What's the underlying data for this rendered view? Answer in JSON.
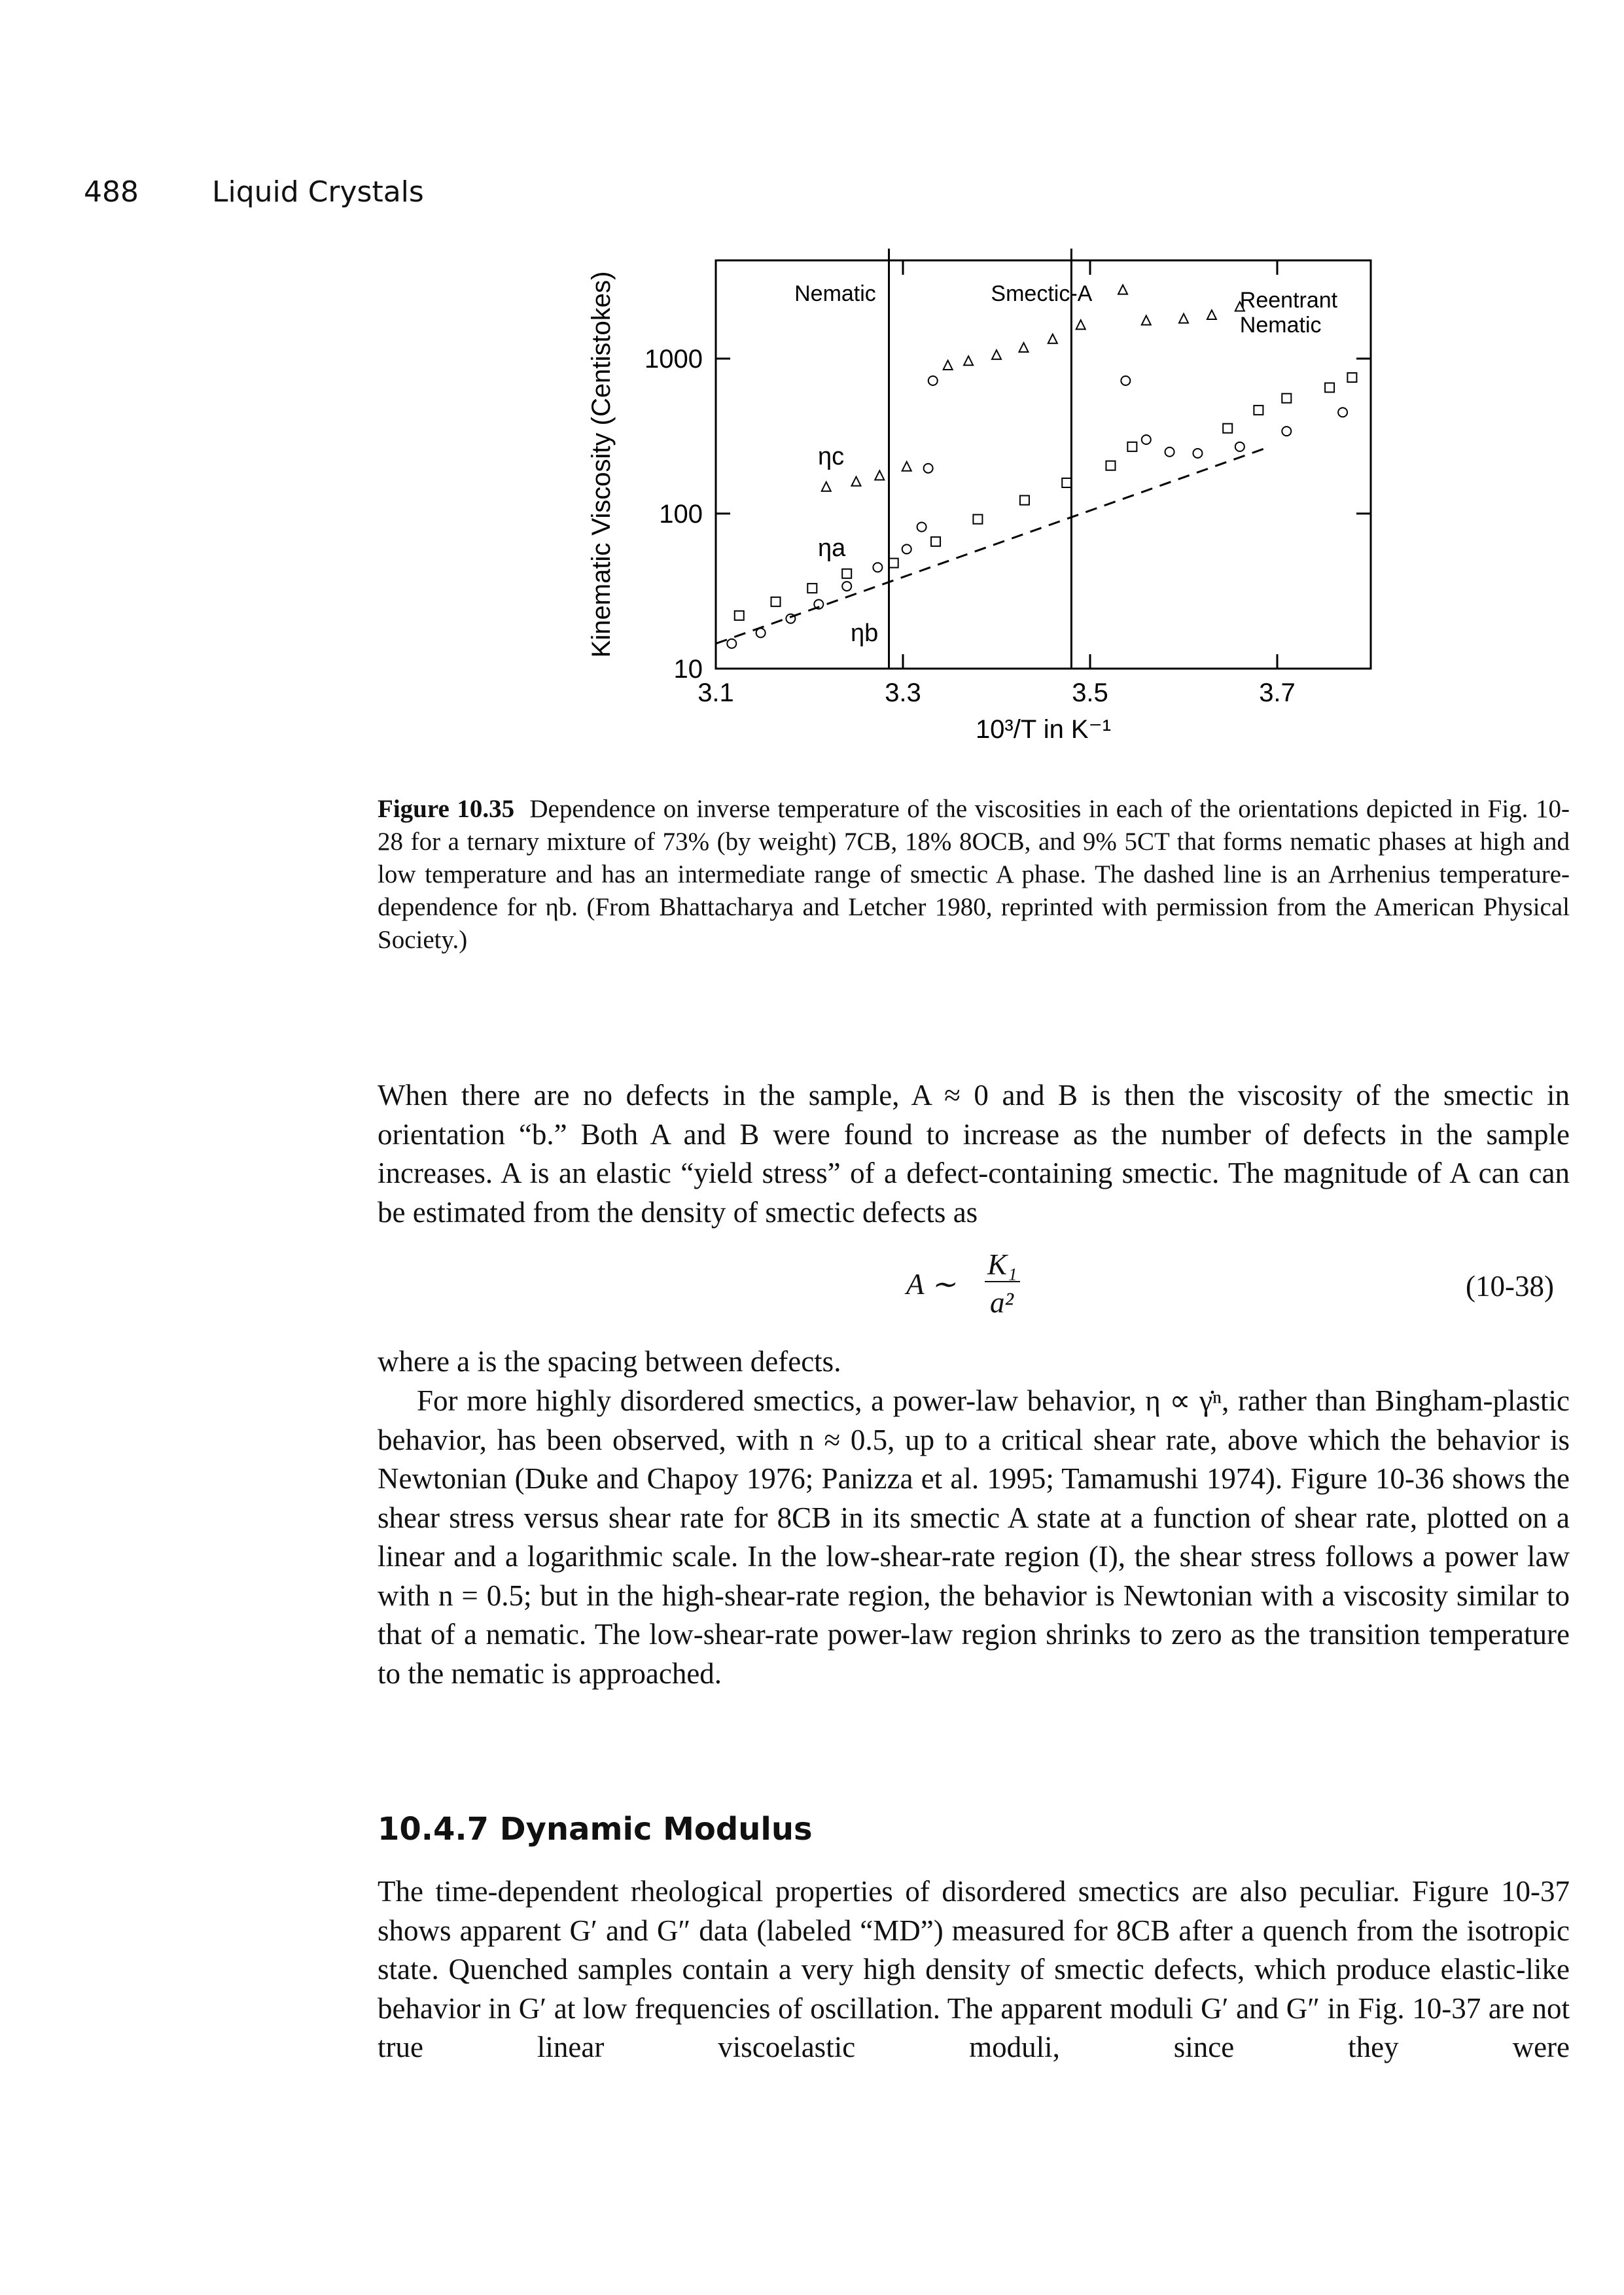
{
  "header": {
    "page_number": "488",
    "running_title": "Liquid Crystals"
  },
  "chart_data": {
    "type": "scatter",
    "ylabel": "Kinematic Viscosity (Centistokes)",
    "xlabel": "10³/T in K⁻¹",
    "xlim": [
      3.1,
      3.8
    ],
    "xticks": [
      3.1,
      3.3,
      3.5,
      3.7
    ],
    "ylim": [
      10,
      4300
    ],
    "yticks": [
      10,
      100,
      1000
    ],
    "log_y": true,
    "phase_boundaries": [
      3.285,
      3.48
    ],
    "annotations": [
      "Nematic",
      "Smectic-A",
      "Reentrant",
      "Nematic"
    ],
    "series": [
      {
        "name": "ηc",
        "marker": "triangle",
        "color": "#000000",
        "x": [
          3.218,
          3.25,
          3.275,
          3.304,
          3.348,
          3.37,
          3.4,
          3.429,
          3.46,
          3.49,
          3.535,
          3.56,
          3.6,
          3.63,
          3.66
        ],
        "values": [
          148,
          160,
          175,
          200,
          900,
          960,
          1050,
          1170,
          1330,
          1640,
          2760,
          1750,
          1800,
          1900,
          2150
        ]
      },
      {
        "name": "ηa",
        "marker": "circle",
        "color": "#000000",
        "x": [
          3.117,
          3.148,
          3.18,
          3.21,
          3.24,
          3.273,
          3.304,
          3.32,
          3.327,
          3.332,
          3.538,
          3.56,
          3.585,
          3.615,
          3.66,
          3.71,
          3.77
        ],
        "values": [
          14.5,
          17,
          21,
          26,
          34,
          45,
          59,
          82,
          196,
          720,
          720,
          300,
          250,
          245,
          270,
          340,
          450
        ]
      },
      {
        "name": "ηb",
        "marker": "square",
        "color": "#000000",
        "x": [
          3.125,
          3.164,
          3.203,
          3.24,
          3.29,
          3.335,
          3.38,
          3.43,
          3.475,
          3.522,
          3.545,
          3.647,
          3.68,
          3.71,
          3.756,
          3.78
        ],
        "values": [
          22,
          27,
          33,
          41,
          48,
          66,
          92,
          122,
          158,
          204,
          270,
          355,
          465,
          555,
          650,
          755
        ]
      },
      {
        "marker": "dashed-line",
        "color": "#000000",
        "x": [
          3.1,
          3.692
        ],
        "values": [
          14.5,
          270
        ]
      }
    ]
  },
  "caption": {
    "label": "Figure 10.35",
    "text": "Dependence on inverse temperature of the viscosities in each of the orientations depicted in Fig. 10-28 for a ternary mixture of 73% (by weight) 7CB, 18% 8OCB, and 9% 5CT that forms nematic phases at high and low temperature and has an intermediate range of smectic A phase. The dashed line is an Arrhenius temperature-dependence for ηb. (From Bhattacharya and Letcher 1980, reprinted with permission from the American Physical Society.)"
  },
  "paragraphs": [
    "When there are no defects in the sample, A ≈ 0 and B is then the viscosity of the smectic in orientation “b.” Both A and B were found to increase as the number of defects in the sample increases. A is an elastic “yield stress” of a defect-containing smectic. The magnitude of A can can be estimated from the density of smectic defects as",
    "where a is the spacing between defects.",
    "For more highly disordered smectics, a power-law behavior, η ∝ γ̇ⁿ, rather than Bingham-plastic behavior, has been observed, with n ≈ 0.5, up to a critical shear rate, above which the behavior is Newtonian (Duke and Chapoy 1976; Panizza et al. 1995; Tamamushi 1974). Figure 10-36 shows the shear stress versus shear rate for 8CB in its smectic A state at a function of shear rate, plotted on a linear and a logarithmic scale. In the low-shear-rate region (I), the shear stress follows a power law with n = 0.5; but in the high-shear-rate region, the behavior is Newtonian with a viscosity similar to that of a nematic. The low-shear-rate power-law region shrinks to zero as the transition temperature to the nematic is approached."
  ],
  "equation": {
    "lhs": "A ∼",
    "numerator": "K₁",
    "denominator": "a²",
    "number": "(10-38)"
  },
  "section": {
    "heading": "10.4.7 Dynamic Modulus",
    "text": "The time-dependent rheological properties of disordered smectics are also peculiar. Figure 10-37 shows apparent G′ and G″ data (labeled “MD”) measured for 8CB after a quench from the isotropic state. Quenched samples contain a very high density of smectic defects, which produce elastic-like behavior in G′ at low frequencies of oscillation. The apparent moduli G′ and G″ in Fig. 10-37 are not true linear viscoelastic moduli, since they were"
  }
}
